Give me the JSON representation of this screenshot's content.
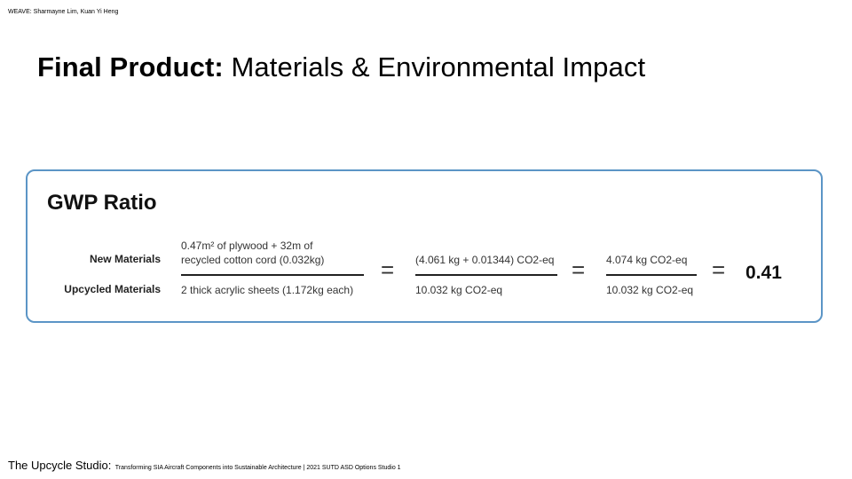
{
  "credit": "WEAVE: Sharmayne Lim, Kuan Yi Heng",
  "title": {
    "bold": "Final Product:",
    "rest": " Materials & Environmental Impact"
  },
  "card": {
    "heading": "GWP Ratio",
    "row_labels": {
      "numerator": "New Materials",
      "denominator": "Upcycled Materials"
    },
    "fraction1": {
      "num_line1": "0.47m² of plywood + 32m of",
      "num_line2": "recycled cotton cord (0.032kg)",
      "den": "2 thick acrylic sheets (1.172kg each)"
    },
    "fraction2": {
      "num": "(4.061 kg + 0.01344) CO2-eq",
      "den": "10.032 kg CO2-eq"
    },
    "fraction3": {
      "num": "4.074 kg CO2-eq",
      "den": "10.032 kg CO2-eq"
    },
    "equals": "=",
    "result": "0.41"
  },
  "footer": {
    "studio": "The Upcycle Studio:",
    "subtitle": "Transforming SIA Aircraft Components into Sustainable Architecture | 2021 SUTD ASD Options Studio 1"
  },
  "colors": {
    "card_border": "#5b95c6"
  }
}
